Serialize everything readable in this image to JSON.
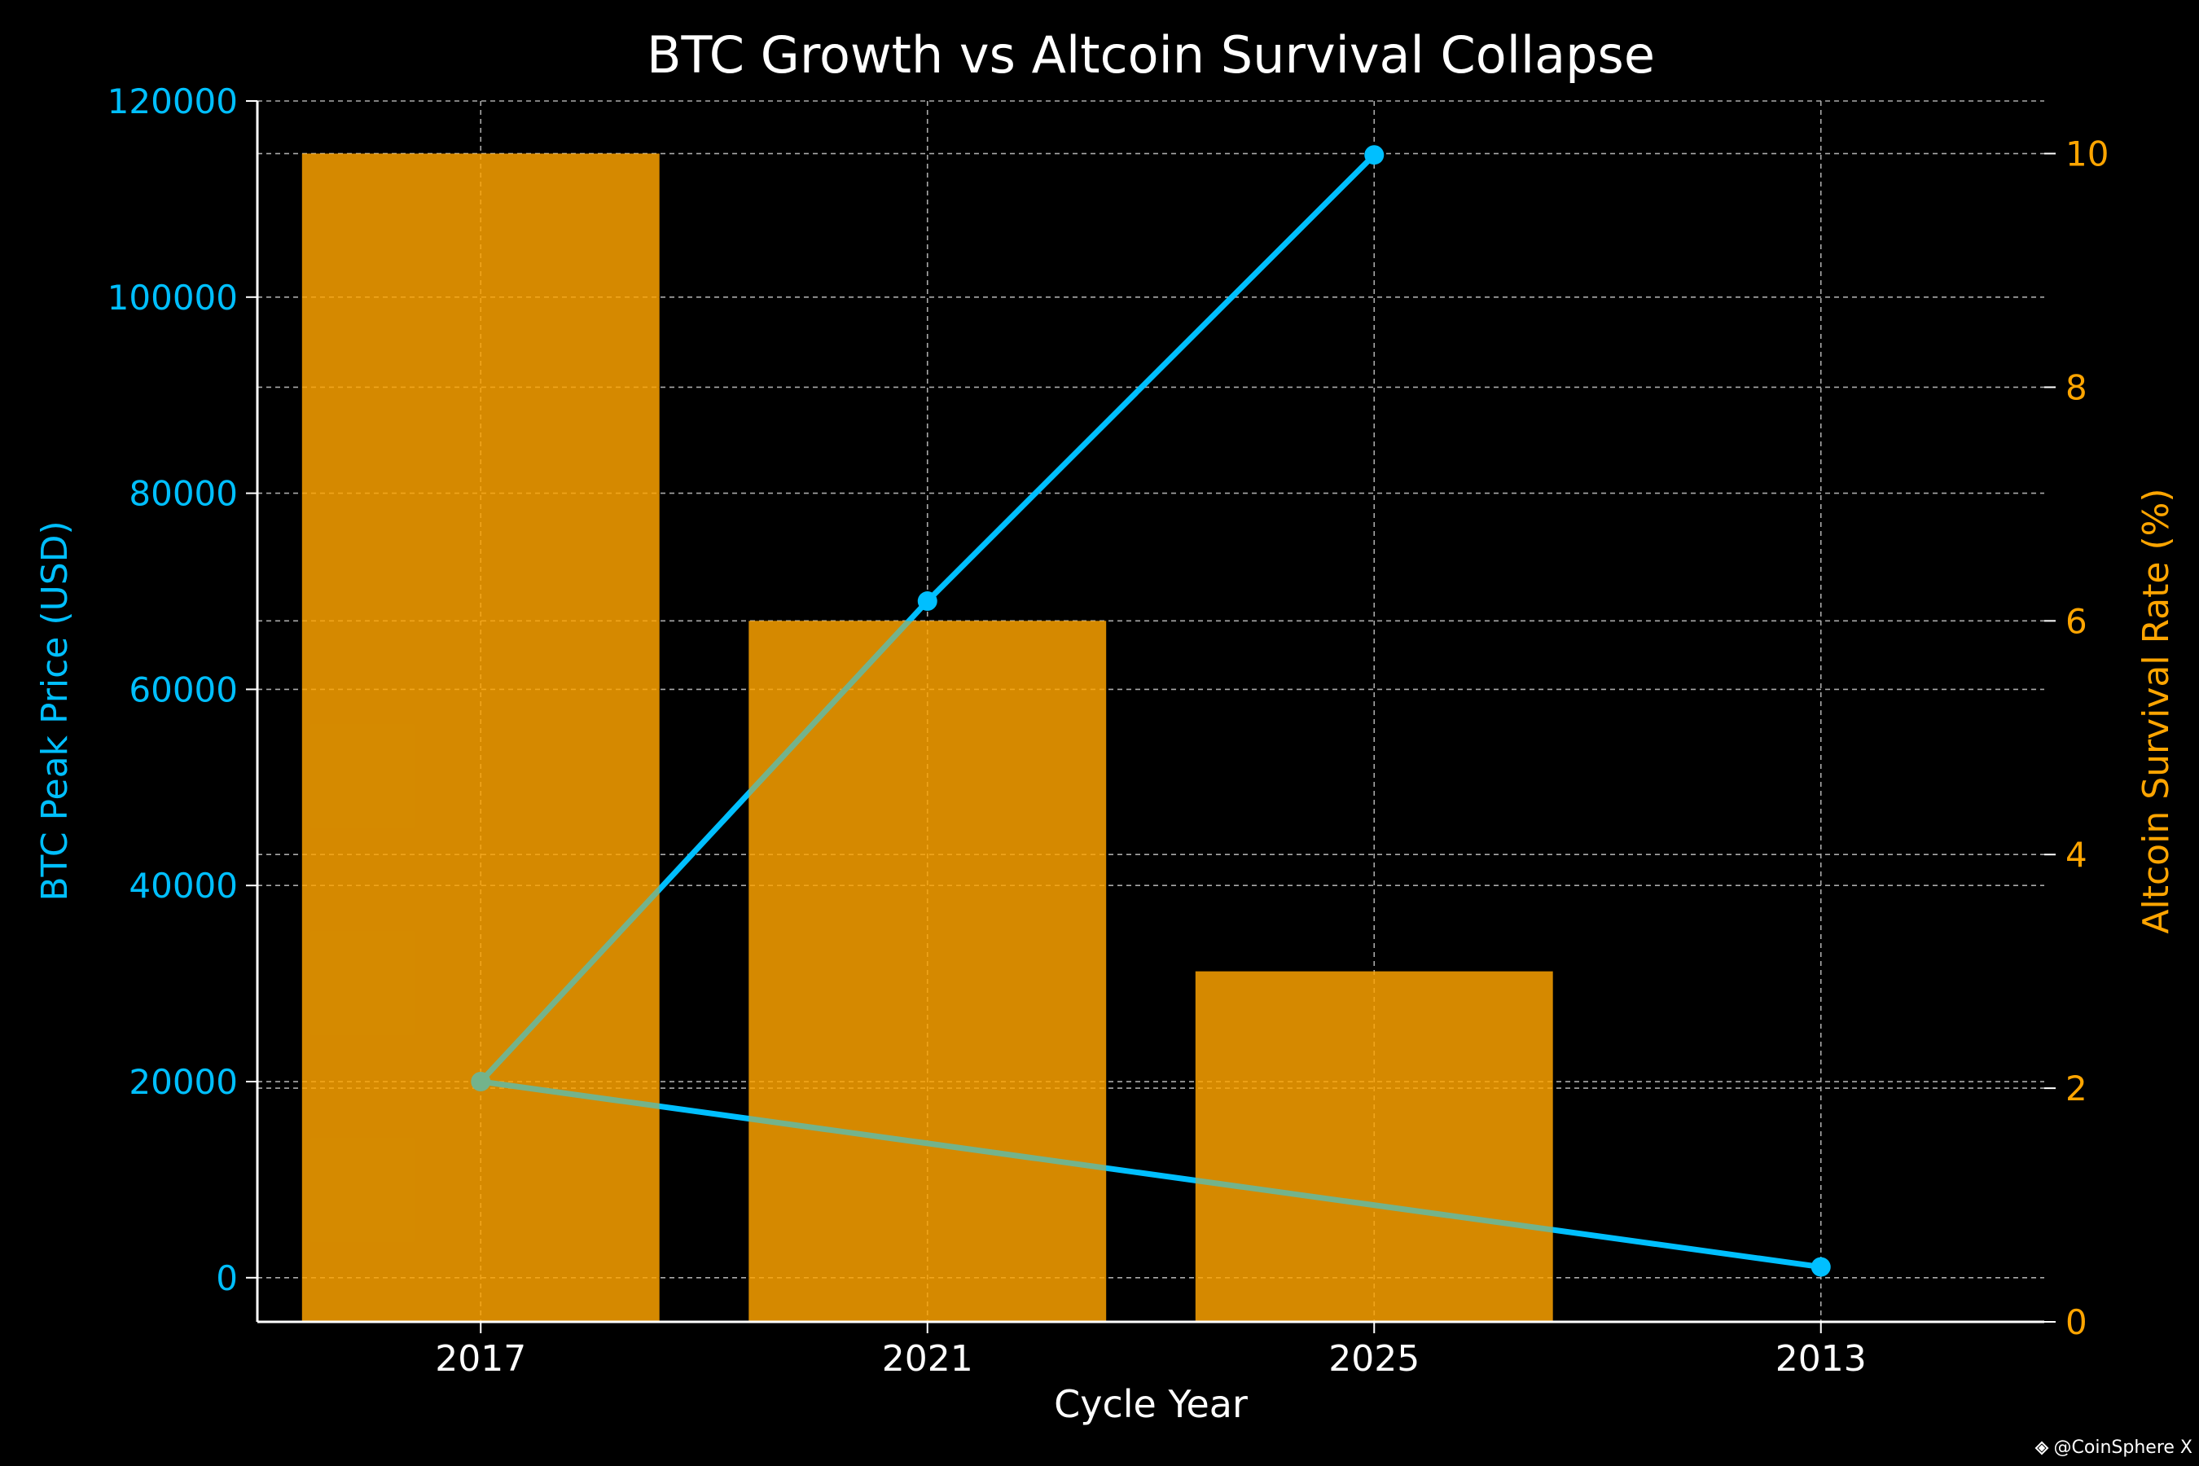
{
  "chart_data": {
    "type": "bar",
    "title": "BTC Growth vs Altcoin Survival Collapse",
    "xlabel": "Cycle Year",
    "categories": [
      "2017",
      "2021",
      "2025",
      "2013"
    ],
    "bar_series": {
      "axis": "right",
      "values": [
        10,
        6,
        3
      ],
      "color": "#FFA500",
      "opacity": 0.7
    },
    "line_series": {
      "axis": "left",
      "values": [
        20000,
        69000,
        114500,
        1100
      ],
      "draw_order": [
        3,
        0,
        1,
        2
      ],
      "color": "#00BFFF",
      "marker": "circle"
    },
    "left_axis": {
      "label": "BTC Peak Price (USD)",
      "ticks": [
        "0",
        "20000",
        "40000",
        "60000",
        "80000",
        "100000",
        "120000"
      ],
      "tick_values": [
        0,
        20000,
        40000,
        60000,
        80000,
        100000,
        120000
      ],
      "ylim": [
        -4500,
        120000
      ],
      "color": "#00BFFF"
    },
    "right_axis": {
      "label": "Altcoin Survival Rate (%)",
      "ticks": [
        "0",
        "2",
        "4",
        "6",
        "8",
        "10"
      ],
      "tick_values": [
        0,
        2,
        4,
        6,
        8,
        10
      ],
      "ylim": [
        0,
        10.45
      ],
      "color": "#FFA500"
    },
    "grid": true,
    "background": "#000000",
    "text_color": "#FFFFFF"
  },
  "watermark": {
    "text": "@CoinSphere X",
    "icon": "binance-diamond-icon"
  }
}
